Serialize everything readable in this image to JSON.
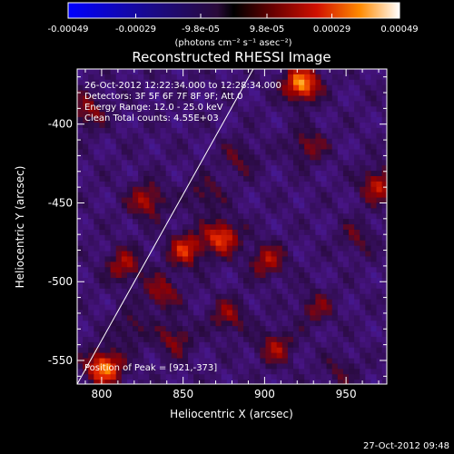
{
  "chart_data": {
    "type": "heatmap",
    "title": "Reconstructed RHESSI Image",
    "xlabel": "Heliocentric X (arcsec)",
    "ylabel": "Heliocentric Y (arcsec)",
    "xlim": [
      785,
      975
    ],
    "ylim": [
      -565,
      -365
    ],
    "x_ticks": [
      800,
      850,
      900,
      950
    ],
    "x_tick_labels": [
      "800",
      "850",
      "900",
      "950"
    ],
    "y_ticks": [
      -400,
      -450,
      -500,
      -550
    ],
    "y_tick_labels": [
      "-400",
      "-450",
      "-500",
      "-550"
    ],
    "colorbar": {
      "ticks": [
        -0.00049,
        -0.00029,
        -9.8e-05,
        9.8e-05,
        0.00029,
        0.00049
      ],
      "tick_labels": [
        "-0.00049",
        "-0.00029",
        "-9.8e-05",
        "9.8e-05",
        "0.00029",
        "0.00049"
      ],
      "units_label": "(photons cm⁻² s⁻¹ asec⁻²)",
      "range": [
        -0.00049,
        0.00049
      ]
    },
    "annotations": [
      "26-Oct-2012 12:22:34.000 to 12:28:34.000",
      "Detectors: 3F 5F 6F 7F 8F 9F; Att 0",
      "Energy Range: 12.0 - 25.0 keV",
      "Clean    Total counts: 4.55E+03"
    ],
    "peak_label": "Position of Peak = [921,-373]",
    "limb_line": [
      [
        785,
        -565
      ],
      [
        893,
        -365
      ]
    ],
    "peaks": [
      {
        "x": 921,
        "y": -373,
        "value": 0.00049
      },
      {
        "x": 800,
        "y": -553,
        "value": 0.00047
      },
      {
        "x": 872,
        "y": -470,
        "value": 0.00038
      },
      {
        "x": 850,
        "y": -478,
        "value": 0.00033
      },
      {
        "x": 826,
        "y": -447,
        "value": 0.00028
      },
      {
        "x": 812,
        "y": -488,
        "value": 0.00026
      },
      {
        "x": 835,
        "y": -505,
        "value": 0.00024
      },
      {
        "x": 900,
        "y": -485,
        "value": 0.00026
      },
      {
        "x": 968,
        "y": -437,
        "value": 0.0003
      },
      {
        "x": 876,
        "y": -520,
        "value": 0.00022
      },
      {
        "x": 843,
        "y": -535,
        "value": 0.00021
      },
      {
        "x": 905,
        "y": -540,
        "value": 0.00024
      },
      {
        "x": 930,
        "y": -515,
        "value": 0.00018
      },
      {
        "x": 883,
        "y": -420,
        "value": 0.00015
      },
      {
        "x": 790,
        "y": -390,
        "value": 0.00022
      },
      {
        "x": 925,
        "y": -412,
        "value": 0.0002
      },
      {
        "x": 955,
        "y": -470,
        "value": 0.00014
      },
      {
        "x": 862,
        "y": -443,
        "value": 0.00016
      },
      {
        "x": 816,
        "y": -528,
        "value": 0.00014
      },
      {
        "x": 945,
        "y": -555,
        "value": 0.00012
      }
    ],
    "grid": false
  },
  "footer": {
    "timestamp": "27-Oct-2012 09:48"
  }
}
